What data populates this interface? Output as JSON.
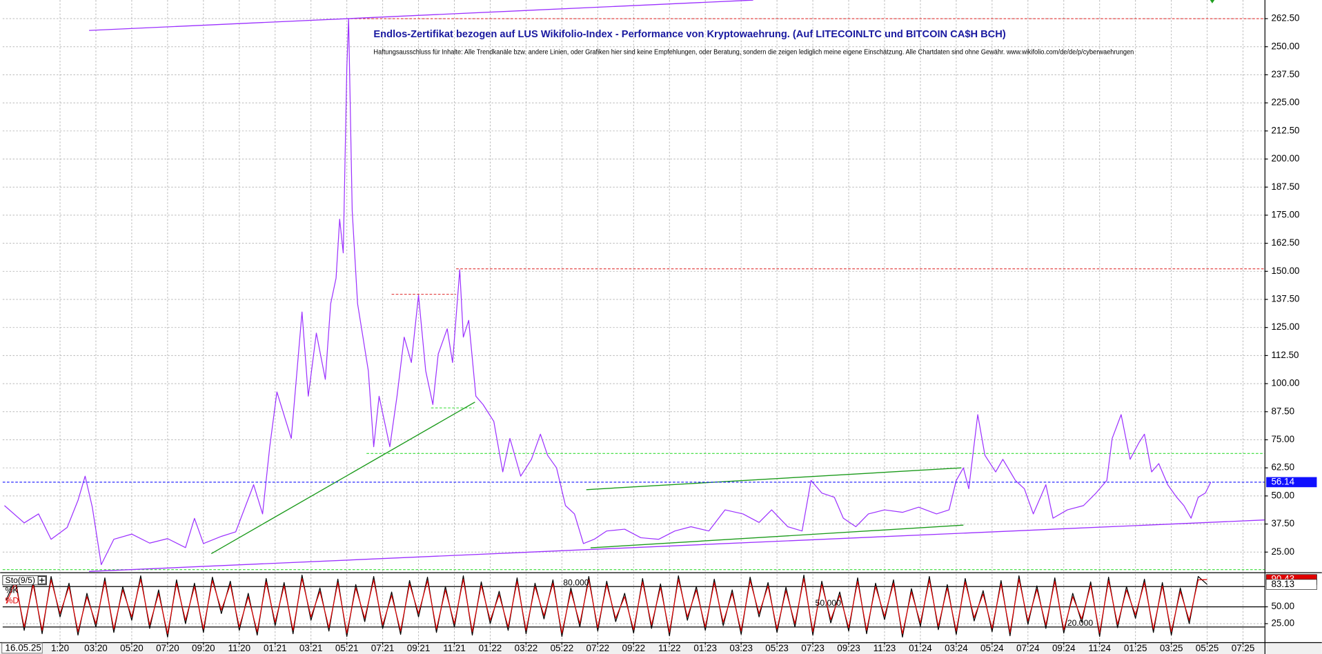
{
  "chart_data": [
    {
      "type": "line",
      "title": "Endlos-Zertifikat bezogen auf LUS Wikifolio-Index - Performance von Kryptowaehrung. (Auf LITECOINLTC und BITCOIN CA$H BCH)",
      "subtitle": "Haftungsausschluss für Inhalte: Alle Trendkanäle bzw. andere Linien, oder Grafiken hier sind keine Empfehlungen, oder Beratung, sondern die zeigen lediglich meine eigene Einschätzung. Alle Chartdaten sind ohne Gewähr.  www.wikifolio.com/de/de/p/cyberwaehrungen",
      "cursor_date": "16.05.25",
      "x": [
        -3.1,
        -2.0,
        -1.2,
        -0.5,
        0.4,
        1.0,
        1.4,
        1.8,
        2.3,
        3.0,
        4.0,
        5.0,
        6.0,
        7.0,
        7.5,
        8.0,
        9.0,
        9.8,
        10.8,
        11.3,
        11.7,
        12.1,
        12.9,
        13.5,
        13.85,
        14.3,
        14.8,
        15.1,
        15.4,
        15.6,
        15.8,
        16.0,
        16.1,
        16.3,
        16.6,
        16.9,
        17.2,
        17.5,
        17.8,
        18.4,
        18.8,
        19.2,
        19.6,
        20.0,
        20.4,
        20.8,
        21.1,
        21.6,
        21.9,
        22.3,
        22.5,
        22.8,
        23.2,
        23.6,
        24.2,
        24.7,
        25.1,
        25.7,
        26.3,
        26.8,
        27.2,
        27.7,
        28.2,
        28.7,
        29.2,
        29.8,
        30.5,
        31.5,
        32.4,
        33.4,
        34.3,
        35.2,
        36.2,
        37.1,
        38.1,
        39.0,
        39.7,
        40.6,
        41.4,
        41.9,
        42.5,
        43.2,
        43.7,
        44.4,
        45.1,
        46.0,
        47.0,
        47.9,
        48.9,
        49.6,
        50.0,
        50.4,
        50.7,
        51.2,
        51.6,
        52.2,
        52.6,
        53.3,
        53.8,
        54.3,
        55.0,
        55.4,
        56.2,
        57.1,
        57.8,
        58.4,
        58.7,
        59.2,
        59.7,
        60.2,
        60.5,
        60.9,
        61.3,
        61.8,
        62.3,
        62.7,
        63.1,
        63.5,
        63.9,
        64.2
      ],
      "series": [
        {
          "color": "#9b30ff",
          "values": [
            45.7,
            38,
            42,
            30.7,
            36,
            48,
            58.8,
            45,
            19.4,
            30.7,
            33,
            29,
            31,
            27,
            40,
            28.8,
            32,
            34,
            55,
            42,
            71.9,
            96.3,
            75.6,
            131.9,
            94.4,
            122.5,
            101.9,
            135.6,
            147,
            173.2,
            158.2,
            240.7,
            262.5,
            177,
            135.6,
            120.7,
            105.7,
            71.9,
            94.4,
            71.9,
            94.4,
            120.7,
            109.4,
            139.4,
            105.7,
            90.7,
            113.2,
            124.4,
            109.4,
            150.7,
            120.7,
            128.2,
            94.4,
            90.7,
            83.2,
            60.7,
            75.6,
            58.8,
            66.3,
            77.5,
            68.1,
            62.5,
            45.7,
            42,
            28.8,
            30.7,
            34.4,
            35.2,
            31.4,
            30.7,
            34.4,
            36.3,
            34.4,
            43.8,
            42,
            38.2,
            43.8,
            36.3,
            34.4,
            56.9,
            51.3,
            49.4,
            40.1,
            36.3,
            42,
            43.8,
            42.7,
            45,
            42,
            43.8,
            56.9,
            62.5,
            53.2,
            86.2,
            68.1,
            60.7,
            66.3,
            56.9,
            53.2,
            42,
            55,
            40.1,
            43.8,
            45.7,
            51.3,
            56.9,
            75.6,
            86.2,
            66.3,
            73.8,
            77.5,
            60.7,
            64.4,
            55,
            49.4,
            45.7,
            40.1,
            49.4,
            51.3,
            56.14
          ]
        }
      ],
      "xlim": [
        -3.2,
        67.2
      ],
      "xticks": [
        {
          "value": 0,
          "label": "1:20"
        },
        {
          "value": 2,
          "label": "03:20"
        },
        {
          "value": 4,
          "label": "05:20"
        },
        {
          "value": 6,
          "label": "07:20"
        },
        {
          "value": 8,
          "label": "09:20"
        },
        {
          "value": 10,
          "label": "11:20"
        },
        {
          "value": 12,
          "label": "01:21"
        },
        {
          "value": 14,
          "label": "03:21"
        },
        {
          "value": 16,
          "label": "05:21"
        },
        {
          "value": 18,
          "label": "07:21"
        },
        {
          "value": 20,
          "label": "09:21"
        },
        {
          "value": 22,
          "label": "11:21"
        },
        {
          "value": 24,
          "label": "01:22"
        },
        {
          "value": 26,
          "label": "03:22"
        },
        {
          "value": 28,
          "label": "05:22"
        },
        {
          "value": 30,
          "label": "07:22"
        },
        {
          "value": 32,
          "label": "09:22"
        },
        {
          "value": 34,
          "label": "11:22"
        },
        {
          "value": 36,
          "label": "01:23"
        },
        {
          "value": 38,
          "label": "03:23"
        },
        {
          "value": 40,
          "label": "05:23"
        },
        {
          "value": 42,
          "label": "07:23"
        },
        {
          "value": 44,
          "label": "09:23"
        },
        {
          "value": 46,
          "label": "11:23"
        },
        {
          "value": 48,
          "label": "01:24"
        },
        {
          "value": 50,
          "label": "03:24"
        },
        {
          "value": 52,
          "label": "05:24"
        },
        {
          "value": 54,
          "label": "07:24"
        },
        {
          "value": 56,
          "label": "09:24"
        },
        {
          "value": 58,
          "label": "11:24"
        },
        {
          "value": 60,
          "label": "01:25"
        },
        {
          "value": 62,
          "label": "03:25"
        },
        {
          "value": 64,
          "label": "05:25"
        },
        {
          "value": 66,
          "label": "07:25"
        }
      ],
      "ylim": [
        16.4,
        270.8
      ],
      "yticks": [
        {
          "value": 25,
          "label": "25.00"
        },
        {
          "value": 37.5,
          "label": "37.50"
        },
        {
          "value": 50,
          "label": "50.00"
        },
        {
          "value": 62.5,
          "label": "62.50"
        },
        {
          "value": 75,
          "label": "75.00"
        },
        {
          "value": 87.5,
          "label": "87.50"
        },
        {
          "value": 100,
          "label": "100.00"
        },
        {
          "value": 112.5,
          "label": "112.50"
        },
        {
          "value": 125,
          "label": "125.00"
        },
        {
          "value": 137.5,
          "label": "137.50"
        },
        {
          "value": 150,
          "label": "150.00"
        },
        {
          "value": 162.5,
          "label": "162.50"
        },
        {
          "value": 175,
          "label": "175.00"
        },
        {
          "value": 187.5,
          "label": "187.50"
        },
        {
          "value": 200,
          "label": "200.00"
        },
        {
          "value": 212.5,
          "label": "212.50"
        },
        {
          "value": 225,
          "label": "225.00"
        },
        {
          "value": 237.5,
          "label": "237.50"
        },
        {
          "value": 250,
          "label": "250.00"
        },
        {
          "value": 262.5,
          "label": "262.50"
        }
      ],
      "grid": true,
      "last_value_color": "#1010ff",
      "hlines": [
        {
          "value": 262.5,
          "x_start": 15.96,
          "color": "#e03030"
        },
        {
          "value": 151.1,
          "x_start": 22.1,
          "color": "#e03030"
        },
        {
          "value": 139.8,
          "x_start": 18.5,
          "x_end": 22.1,
          "color": "#e03030"
        },
        {
          "value": 68.9,
          "x_start": 17.1,
          "color": "#33dd33"
        },
        {
          "value": 89.2,
          "x_start": 20.7,
          "x_end": 23.1,
          "color": "#33dd33"
        },
        {
          "value": 17.2,
          "color": "#33dd33"
        }
      ],
      "trendlines": [
        {
          "x": [
            1.62,
            38.67
          ],
          "y": [
            257.25,
            270.75
          ],
          "color": "#9b30ff"
        },
        {
          "x": [
            1.62,
            67.2
          ],
          "y": [
            16.4,
            39.3
          ],
          "color": "#9b30ff"
        },
        {
          "x": [
            8.44,
            23.15
          ],
          "y": [
            24.3,
            91.8
          ],
          "color": "#1a9a1a"
        },
        {
          "x": [
            29.36,
            50.28
          ],
          "y": [
            52.8,
            62.5
          ],
          "color": "#1a9a1a"
        },
        {
          "x": [
            29.6,
            50.4
          ],
          "y": [
            26.9,
            37.0
          ],
          "color": "#1a9a1a"
        }
      ]
    },
    {
      "type": "line",
      "title": "Sto(9/5)",
      "x": [
        -3,
        -2.5,
        -2,
        -1.5,
        -1,
        -0.5,
        0,
        0.5,
        1,
        1.5,
        2,
        2.5,
        3,
        3.5,
        4,
        4.5,
        5,
        5.5,
        6,
        6.5,
        7,
        7.5,
        8,
        8.5,
        9,
        9.5,
        10,
        10.5,
        11,
        11.5,
        12,
        12.5,
        13,
        13.5,
        14,
        14.5,
        15,
        15.5,
        16,
        16.5,
        17,
        17.5,
        18,
        18.5,
        19,
        19.5,
        20,
        20.5,
        21,
        21.5,
        22,
        22.5,
        23,
        23.5,
        24,
        24.5,
        25,
        25.5,
        26,
        26.5,
        27,
        27.5,
        28,
        28.5,
        29,
        29.5,
        30,
        30.5,
        31,
        31.5,
        32,
        32.5,
        33,
        33.5,
        34,
        34.5,
        35,
        35.5,
        36,
        36.5,
        37,
        37.5,
        38,
        38.5,
        39,
        39.5,
        40,
        40.5,
        41,
        41.5,
        42,
        42.5,
        43,
        43.5,
        44,
        44.5,
        45,
        45.5,
        46,
        46.5,
        47,
        47.5,
        48,
        48.5,
        49,
        49.5,
        50,
        50.5,
        51,
        51.5,
        52,
        52.5,
        53,
        53.5,
        54,
        54.5,
        55,
        55.5,
        56,
        56.5,
        57,
        57.5,
        58,
        58.5,
        59,
        59.5,
        60,
        60.5,
        61,
        61.5,
        62,
        62.5,
        63,
        63.5,
        64
      ],
      "series": [
        {
          "name": "%K",
          "color": "#000000",
          "values": [
            60,
            92,
            15,
            88,
            10,
            95,
            35,
            85,
            8,
            70,
            20,
            93,
            12,
            80,
            30,
            96,
            18,
            75,
            5,
            90,
            25,
            85,
            12,
            94,
            40,
            88,
            15,
            70,
            8,
            92,
            22,
            86,
            10,
            97,
            30,
            78,
            14,
            91,
            6,
            83,
            28,
            95,
            18,
            72,
            9,
            89,
            35,
            94,
            12,
            80,
            20,
            96,
            8,
            87,
            25,
            73,
            15,
            93,
            10,
            85,
            32,
            90,
            6,
            78,
            20,
            95,
            14,
            88,
            28,
            70,
            11,
            92,
            18,
            84,
            7,
            96,
            30,
            80,
            15,
            91,
            22,
            75,
            9,
            94,
            35,
            86,
            12,
            79,
            20,
            97,
            8,
            88,
            26,
            72,
            14,
            93,
            10,
            85,
            31,
            90,
            5,
            77,
            21,
            95,
            16,
            83,
            9,
            92,
            29,
            74,
            13,
            89,
            7,
            96,
            24,
            81,
            18,
            93,
            11,
            70,
            27,
            87,
            6,
            94,
            19,
            80,
            33,
            91,
            12,
            86,
            8,
            78,
            25,
            95,
            83.13
          ]
        },
        {
          "name": "%D",
          "color": "#e00000",
          "values": [
            55,
            87,
            20,
            83,
            15,
            90,
            40,
            80,
            13,
            65,
            25,
            88,
            17,
            75,
            35,
            91,
            23,
            70,
            10,
            85,
            30,
            80,
            17,
            89,
            45,
            83,
            20,
            65,
            13,
            87,
            27,
            81,
            15,
            92,
            35,
            73,
            19,
            86,
            11,
            78,
            33,
            90,
            23,
            67,
            14,
            84,
            40,
            89,
            17,
            75,
            25,
            91,
            13,
            82,
            30,
            68,
            20,
            88,
            15,
            80,
            37,
            85,
            11,
            73,
            25,
            90,
            19,
            83,
            33,
            65,
            16,
            87,
            23,
            79,
            12,
            91,
            35,
            75,
            20,
            86,
            27,
            70,
            14,
            89,
            40,
            81,
            17,
            74,
            25,
            92,
            13,
            83,
            31,
            67,
            19,
            88,
            15,
            80,
            36,
            85,
            10,
            72,
            26,
            90,
            21,
            78,
            14,
            87,
            34,
            69,
            18,
            84,
            12,
            91,
            29,
            76,
            23,
            88,
            16,
            65,
            32,
            82,
            11,
            89,
            24,
            75,
            38,
            86,
            17,
            81,
            13,
            73,
            30,
            90,
            90.43
          ]
        }
      ],
      "xlim": [
        -3.2,
        67.2
      ],
      "ylim": [
        -2.5,
        98.75
      ],
      "yticks": [
        {
          "value": 25,
          "label": "25.00"
        },
        {
          "value": 50,
          "label": "50.00"
        }
      ],
      "levels": [
        {
          "value": 80,
          "label": "80.000"
        },
        {
          "value": 50,
          "label": "50.000"
        },
        {
          "value": 20,
          "label": "20.000"
        }
      ],
      "grid": true
    }
  ]
}
